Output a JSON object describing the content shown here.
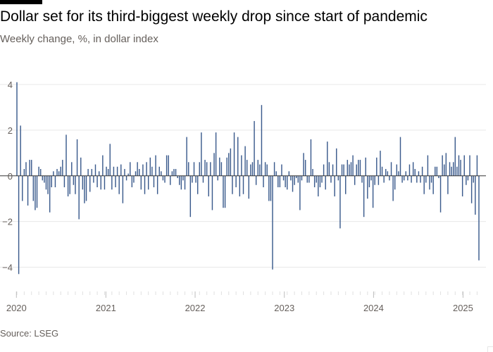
{
  "title": "Dollar set for its third-biggest weekly drop since start of pandemic",
  "subtitle": "Weekly change, %, in dollar index",
  "source": "Source: LSEG",
  "colors": {
    "bar": "#3a5a8c",
    "grid": "#e8e8e8",
    "zero_line": "#333333",
    "tick_text": "#66605c"
  },
  "chart_data": {
    "type": "bar",
    "title": "Dollar set for its third-biggest weekly drop since start of pandemic",
    "subtitle": "Weekly change, %, in dollar index",
    "xlabel": "",
    "ylabel": "",
    "ylim": [
      -5,
      4
    ],
    "yticks": [
      4,
      2,
      0,
      -2,
      -4
    ],
    "grid": true,
    "x_axis": {
      "type": "date",
      "range": [
        "2020-01-03",
        "2025-03-07"
      ],
      "tick_labels": [
        {
          "date": "2020-01-01",
          "label": "2020"
        },
        {
          "date": "2021-01-01",
          "label": "2021"
        },
        {
          "date": "2022-01-01",
          "label": "2022"
        },
        {
          "date": "2023-01-01",
          "label": "2023"
        },
        {
          "date": "2024-01-01",
          "label": "2024"
        },
        {
          "date": "2025-01-01",
          "label": "2025"
        }
      ]
    },
    "series": [
      {
        "start_week": "2020-01-03",
        "frequency": "weekly",
        "values": [
          4.1,
          -4.3,
          2.2,
          -1.1,
          0.3,
          0.6,
          -1.3,
          0.7,
          0.7,
          -1.1,
          -1.5,
          -1.4,
          0.4,
          0.3,
          -0.2,
          -0.3,
          -0.6,
          -0.8,
          -1.6,
          -0.5,
          0.2,
          -0.5,
          0.3,
          0.2,
          0.4,
          0.7,
          -0.5,
          1.8,
          -0.9,
          -0.8,
          0.6,
          -0.4,
          -0.8,
          1.6,
          -1.9,
          0.8,
          -0.6,
          -1.2,
          -1.1,
          0.3,
          -0.7,
          0.3,
          -0.3,
          0.5,
          -0.5,
          0.2,
          -0.6,
          0.9,
          -0.6,
          0.4,
          0.3,
          1.4,
          -0.6,
          0.4,
          -0.5,
          0.4,
          -0.8,
          0.5,
          -1.2,
          0.3,
          -0.2,
          0.1,
          0.6,
          -0.5,
          -0.3,
          0.2,
          0.6,
          0.3,
          -0.6,
          0.5,
          -0.8,
          0.6,
          -0.6,
          0.8,
          0.4,
          -0.5,
          0.9,
          -0.8,
          0.4,
          0.2,
          -0.2,
          -0.3,
          0.9,
          0.9,
          -0.4,
          0.2,
          0.3,
          0.3,
          -0.1,
          -0.4,
          -0.6,
          -0.2,
          -0.6,
          1.7,
          0.6,
          -1.8,
          -0.3,
          0.6,
          -0.3,
          -0.8,
          0.6,
          1.9,
          -0.3,
          0.7,
          0.6,
          -0.9,
          0.6,
          -1.5,
          1.0,
          1.9,
          -0.2,
          0.8,
          0.6,
          -1.4,
          -1.4,
          0.8,
          1.0,
          1.2,
          -0.8,
          1.9,
          -0.5,
          1.7,
          -0.9,
          0.9,
          -0.8,
          1.3,
          0.7,
          -1.0,
          0.5,
          0.6,
          2.4,
          -0.4,
          0.7,
          0.5,
          3.1,
          -0.5,
          0.6,
          0.5,
          -1.1,
          -1.1,
          -4.1,
          0.6,
          0.2,
          -0.5,
          -0.5,
          0.5,
          -0.2,
          -0.5,
          -0.6,
          0.2,
          -0.2,
          -0.7,
          -0.4,
          -0.1,
          -0.3,
          -1.5,
          -0.2,
          1.0,
          0.7,
          -0.3,
          -0.3,
          1.6,
          0.3,
          -0.5,
          -0.3,
          -0.9,
          -0.5,
          -0.3,
          0.5,
          -0.6,
          1.5,
          0.6,
          -0.3,
          0.5,
          -0.9,
          1.2,
          -0.2,
          -2.3,
          0.5,
          0.5,
          -0.8,
          0.7,
          0.5,
          0.6,
          0.9,
          -0.4,
          0.5,
          0.7,
          0.7,
          -0.3,
          -1.8,
          0.8,
          -1.0,
          -0.5,
          -0.2,
          -1.4,
          -0.4,
          0.8,
          -0.4,
          1.1,
          0.4,
          -0.3,
          0.3,
          0.2,
          -0.2,
          0.6,
          -1.1,
          -0.6,
          0.5,
          0.2,
          1.7,
          -0.3,
          -0.2,
          0.2,
          -0.2,
          0.5,
          -0.3,
          0.6,
          0.3,
          -0.3,
          0.2,
          -0.3,
          0.4,
          -0.8,
          -0.3,
          0.9,
          -0.6,
          -0.3,
          -0.8,
          0.4,
          0.4,
          -0.1,
          -1.6,
          0.9,
          0.5,
          1.0,
          -0.8,
          0.6,
          0.4,
          0.6,
          1.7,
          0.4,
          0.9,
          0.7,
          -0.9,
          0.9,
          -0.4,
          -0.2,
          0.9,
          -1.2,
          -0.3,
          -1.7,
          0.9,
          -3.7
        ]
      }
    ]
  }
}
